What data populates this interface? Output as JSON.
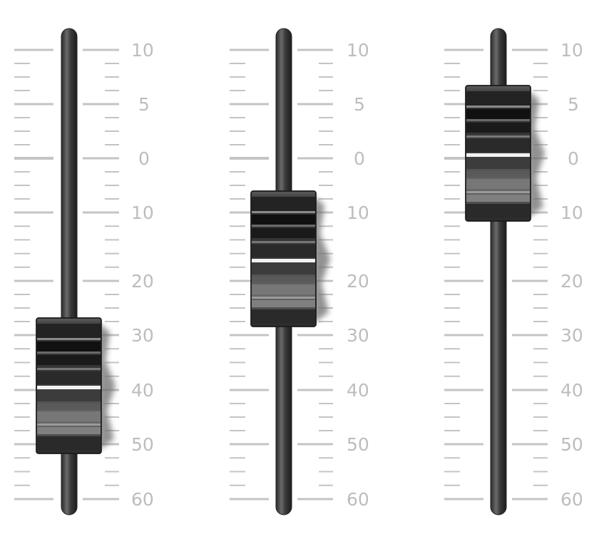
{
  "scale_labels": [
    "10",
    "5",
    "0",
    "10",
    "20",
    "30",
    "40",
    "50",
    "60"
  ],
  "faders": [
    {
      "name": "fader-1",
      "level_label": "40"
    },
    {
      "name": "fader-2",
      "level_label": "15"
    },
    {
      "name": "fader-3",
      "level_label": "0"
    }
  ],
  "colors": {
    "tick": "#c4c4c4",
    "label": "#bdbdbd",
    "track": "#4a4a4a",
    "knob_body": "#3a3a3a",
    "knob_highlight": "#ffffff"
  }
}
